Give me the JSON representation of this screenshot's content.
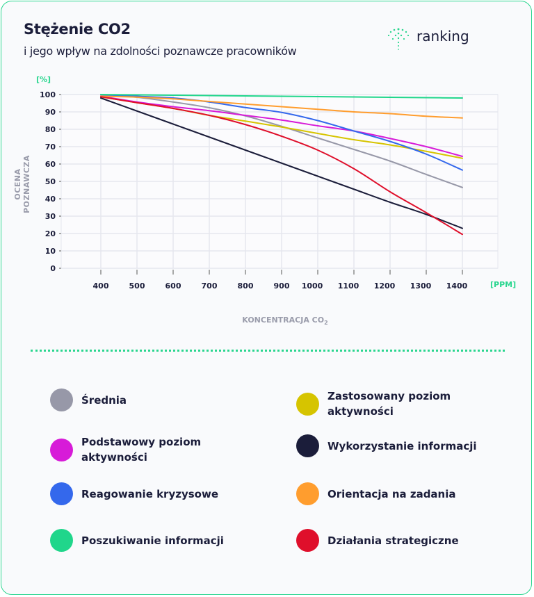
{
  "header": {
    "title": "Stężenie CO2",
    "subtitle": "i jego wpływ na zdolności poznawcze pracowników",
    "logo_text": "ranking"
  },
  "chart_data": {
    "type": "line",
    "ylabel": "OCENA POZNAWCZA",
    "xlabel": "KONCENTRACJA CO",
    "xlabel_sub": "2",
    "y_unit": "[%]",
    "x_unit": "[PPM]",
    "x": [
      400,
      500,
      600,
      700,
      800,
      900,
      1000,
      1100,
      1200,
      1300,
      1400
    ],
    "xlim": [
      400,
      1400
    ],
    "ylim": [
      0,
      100
    ],
    "yticks": [
      0,
      10,
      20,
      30,
      40,
      50,
      60,
      70,
      80,
      90,
      100
    ],
    "grid": true,
    "legend_placement": "bottom",
    "series": [
      {
        "name": "Średnia",
        "color": "#9798a8",
        "values": [
          99.7,
          98.4,
          95.7,
          92.4,
          87.7,
          81.7,
          75,
          68.4,
          61.7,
          54,
          46.5
        ]
      },
      {
        "name": "Zastosowany poziom aktywności",
        "color": "#d6c400",
        "values": [
          98.7,
          95.3,
          92,
          88,
          84.7,
          81.3,
          77.6,
          74,
          71,
          67.3,
          63.3
        ]
      },
      {
        "name": "Podstawowy poziom aktywności",
        "color": "#d71bd8",
        "values": [
          99,
          95.7,
          93,
          90.7,
          88,
          85.3,
          82,
          79,
          74.7,
          70,
          64.4
        ]
      },
      {
        "name": "Wykorzystanie informacji",
        "color": "#1b1d3a",
        "values": [
          98,
          90.5,
          83,
          75.5,
          68,
          60.5,
          53,
          45.5,
          38,
          31,
          23
        ]
      },
      {
        "name": "Reagowanie kryzysowe",
        "color": "#3468ec",
        "values": [
          100,
          99,
          98,
          95.7,
          92.5,
          89.7,
          85,
          79,
          73,
          65.7,
          56.5
        ]
      },
      {
        "name": "Orientacja na zadania",
        "color": "#ff9d2e",
        "values": [
          99,
          98.5,
          97.5,
          96,
          94.5,
          93,
          91.5,
          90,
          89,
          87.5,
          86.5
        ]
      },
      {
        "name": "Poszukiwanie informacji",
        "color": "#20d68b",
        "values": [
          100,
          99.8,
          99.6,
          99.4,
          99.2,
          99,
          98.8,
          98.6,
          98.4,
          98.2,
          98
        ]
      },
      {
        "name": "Działania strategiczne",
        "color": "#df0f2b",
        "values": [
          98.7,
          95.3,
          92,
          88,
          82.7,
          76,
          68,
          57.3,
          44,
          32,
          19.5
        ]
      }
    ]
  }
}
